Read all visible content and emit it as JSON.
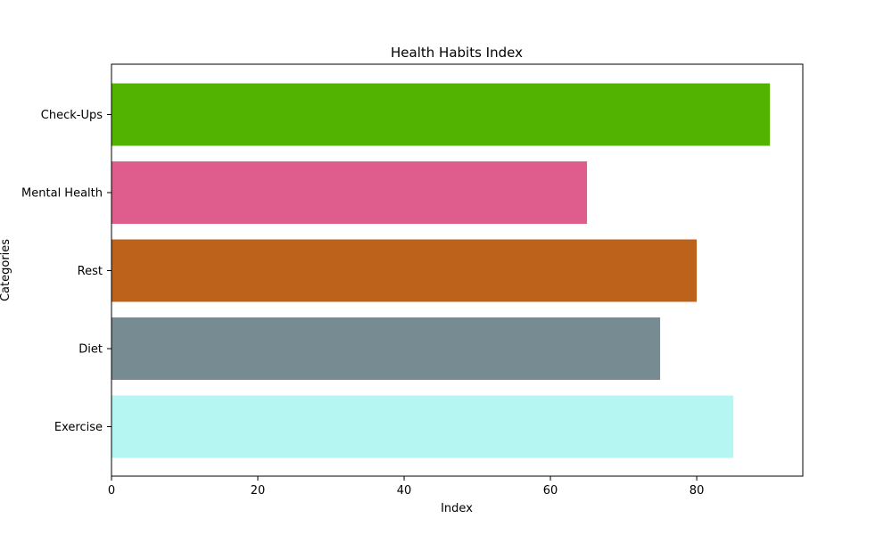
{
  "chart_data": {
    "type": "bar",
    "orientation": "horizontal",
    "title": "Health Habits Index",
    "xlabel": "Index",
    "ylabel": "Categories",
    "categories": [
      "Exercise",
      "Diet",
      "Rest",
      "Mental Health",
      "Check-Ups"
    ],
    "values": [
      85,
      75,
      80,
      65,
      90
    ],
    "colors": [
      "#b5f6f2",
      "#768c92",
      "#bd621b",
      "#df5d8c",
      "#52b300"
    ],
    "xlim": [
      0,
      94.5
    ],
    "xticks": [
      0,
      20,
      40,
      60,
      80
    ],
    "grid": false,
    "legend": "none"
  }
}
